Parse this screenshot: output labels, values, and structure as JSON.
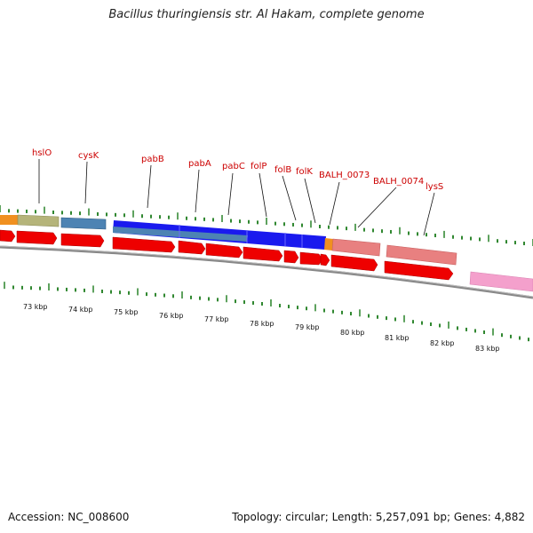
{
  "title": "Bacillus thuringiensis str. Al Hakam, complete genome",
  "footer": {
    "accession_label": "Accession:",
    "accession": "NC_008600",
    "topology_label": "Topology:",
    "topology": "circular",
    "length_label": "Length:",
    "length": "5,257,091 bp",
    "genes_label": "Genes:",
    "genes": "4,882"
  },
  "gene_labels": [
    "hslO",
    "cysK",
    "pabB",
    "pabA",
    "pabC",
    "folP",
    "folB",
    "folK",
    "BALH_0073",
    "BALH_0074",
    "lysS"
  ],
  "kbp_labels": [
    "73 kbp",
    "74 kbp",
    "75 kbp",
    "76 kbp",
    "77 kbp",
    "78 kbp",
    "79 kbp",
    "80 kbp",
    "81 kbp",
    "82 kbp",
    "83 kbp"
  ],
  "colors": {
    "gene_label": "#cc0000",
    "cds_arrow": "#ee0000",
    "tick": "#1a7a1a",
    "backbone": "#888888",
    "olive_block": "#b5b47a",
    "steel_block": "#4d83b3",
    "blue_block": "#1a1aee",
    "salmon_block": "#e88080",
    "pink_block": "#f4a0cc",
    "orange_block": "#f09020"
  }
}
